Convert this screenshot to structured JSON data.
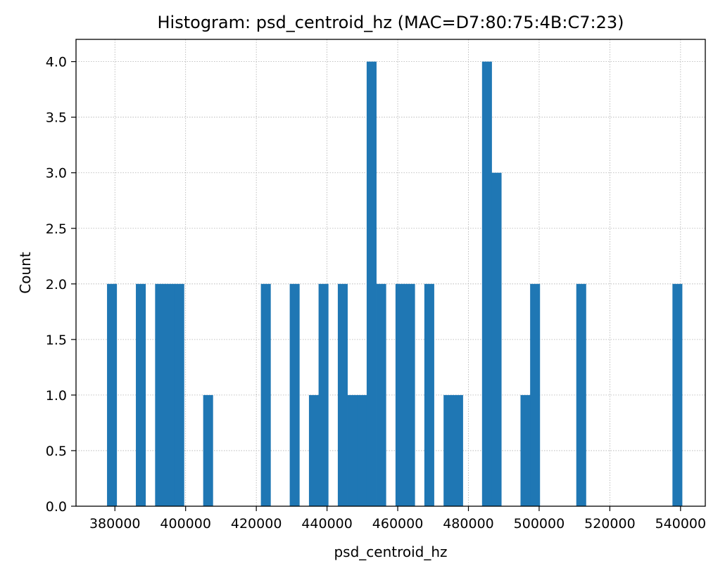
{
  "chart_data": {
    "type": "bar",
    "title": "Histogram: psd_centroid_hz (MAC=D7:80:75:4B:C7:23)",
    "xlabel": "psd_centroid_hz",
    "ylabel": "Count",
    "xlim": [
      369000,
      547000
    ],
    "ylim": [
      0,
      4.2
    ],
    "grid": true,
    "grid_style": "dotted",
    "bar_color": "#1f77b4",
    "bin_width": 2720,
    "x_ticks": [
      380000,
      400000,
      420000,
      440000,
      460000,
      480000,
      500000,
      520000,
      540000
    ],
    "x_tick_labels": [
      "380000",
      "400000",
      "420000",
      "440000",
      "460000",
      "480000",
      "500000",
      "520000",
      "540000"
    ],
    "y_ticks": [
      0.0,
      0.5,
      1.0,
      1.5,
      2.0,
      2.5,
      3.0,
      3.5,
      4.0
    ],
    "y_tick_labels": [
      "0.0",
      "0.5",
      "1.0",
      "1.5",
      "2.0",
      "2.5",
      "3.0",
      "3.5",
      "4.0"
    ],
    "bins": [
      {
        "x0": 377770,
        "count": 2
      },
      {
        "x0": 385930,
        "count": 2
      },
      {
        "x0": 391370,
        "count": 2
      },
      {
        "x0": 394090,
        "count": 2
      },
      {
        "x0": 396810,
        "count": 2
      },
      {
        "x0": 404970,
        "count": 1
      },
      {
        "x0": 421290,
        "count": 2
      },
      {
        "x0": 429450,
        "count": 2
      },
      {
        "x0": 434890,
        "count": 1
      },
      {
        "x0": 437610,
        "count": 2
      },
      {
        "x0": 443050,
        "count": 2
      },
      {
        "x0": 445770,
        "count": 1
      },
      {
        "x0": 448490,
        "count": 1
      },
      {
        "x0": 451210,
        "count": 4
      },
      {
        "x0": 453930,
        "count": 2
      },
      {
        "x0": 459370,
        "count": 2
      },
      {
        "x0": 462090,
        "count": 2
      },
      {
        "x0": 467530,
        "count": 2
      },
      {
        "x0": 472970,
        "count": 1
      },
      {
        "x0": 475690,
        "count": 1
      },
      {
        "x0": 483850,
        "count": 4
      },
      {
        "x0": 486570,
        "count": 3
      },
      {
        "x0": 494730,
        "count": 1
      },
      {
        "x0": 497450,
        "count": 2
      },
      {
        "x0": 510510,
        "count": 2
      },
      {
        "x0": 537710,
        "count": 2
      }
    ]
  }
}
